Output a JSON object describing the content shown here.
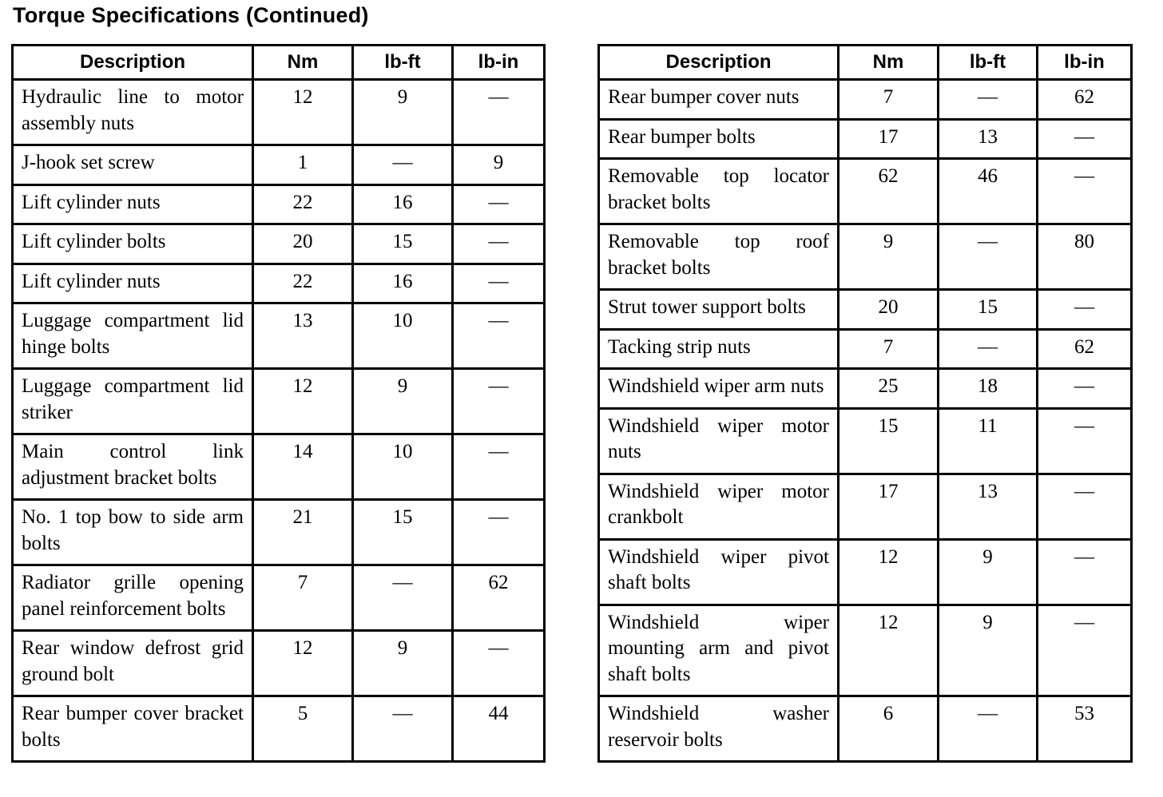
{
  "title": "Torque Specifications (Continued)",
  "tables": [
    {
      "name": "left",
      "headers": [
        "Description",
        "Nm",
        "lb-ft",
        "lb-in"
      ],
      "rows": [
        [
          "Hydraulic line to motor assembly nuts",
          "12",
          "9",
          "—"
        ],
        [
          "J-hook set screw",
          "1",
          "—",
          "9"
        ],
        [
          "Lift cylinder nuts",
          "22",
          "16",
          "—"
        ],
        [
          "Lift cylinder bolts",
          "20",
          "15",
          "—"
        ],
        [
          "Lift cylinder nuts",
          "22",
          "16",
          "—"
        ],
        [
          "Luggage compartment lid hinge bolts",
          "13",
          "10",
          "—"
        ],
        [
          "Luggage compartment lid striker",
          "12",
          "9",
          "—"
        ],
        [
          "Main control link adjustment bracket bolts",
          "14",
          "10",
          "—"
        ],
        [
          "No. 1 top bow to side arm bolts",
          "21",
          "15",
          "—"
        ],
        [
          "Radiator grille opening panel reinforcement bolts",
          "7",
          "—",
          "62"
        ],
        [
          "Rear window defrost grid ground bolt",
          "12",
          "9",
          "—"
        ],
        [
          "Rear bumper cover bracket bolts",
          "5",
          "—",
          "44"
        ]
      ]
    },
    {
      "name": "right",
      "headers": [
        "Description",
        "Nm",
        "lb-ft",
        "lb-in"
      ],
      "rows": [
        [
          "Rear bumper cover nuts",
          "7",
          "—",
          "62"
        ],
        [
          "Rear bumper bolts",
          "17",
          "13",
          "—"
        ],
        [
          "Removable top locator bracket bolts",
          "62",
          "46",
          "—"
        ],
        [
          "Removable top roof bracket bolts",
          "9",
          "—",
          "80"
        ],
        [
          "Strut tower support bolts",
          "20",
          "15",
          "—"
        ],
        [
          "Tacking strip nuts",
          "7",
          "—",
          "62"
        ],
        [
          "Windshield wiper arm nuts",
          "25",
          "18",
          "—"
        ],
        [
          "Windshield wiper motor nuts",
          "15",
          "11",
          "—"
        ],
        [
          "Windshield wiper motor crankbolt",
          "17",
          "13",
          "—"
        ],
        [
          "Windshield wiper pivot shaft bolts",
          "12",
          "9",
          "—"
        ],
        [
          "Windshield wiper mounting arm and pivot shaft bolts",
          "12",
          "9",
          "—"
        ],
        [
          "Windshield washer reservoir bolts",
          "6",
          "—",
          "53"
        ]
      ]
    }
  ]
}
